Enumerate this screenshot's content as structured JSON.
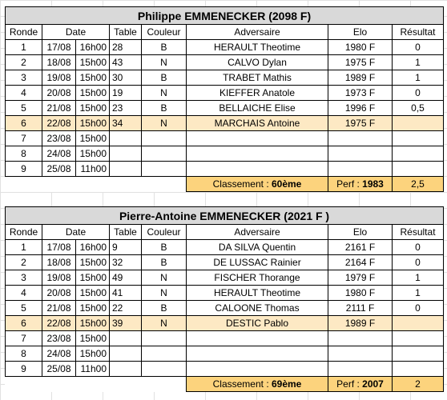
{
  "headers": [
    "Ronde",
    "Date",
    "Table",
    "Couleur",
    "Adversaire",
    "Elo",
    "Résultat"
  ],
  "players": [
    {
      "title": "Philippe EMMENECKER (2098 F)",
      "rows": [
        {
          "ronde": "1",
          "date": "17/08",
          "time": "16h00",
          "table": "28",
          "couleur": "B",
          "adversaire": "HERAULT Theotime",
          "elo": "1980 F",
          "resultat": "0"
        },
        {
          "ronde": "2",
          "date": "18/08",
          "time": "15h00",
          "table": "43",
          "couleur": "N",
          "adversaire": "CALVO Dylan",
          "elo": "1975 F",
          "resultat": "1"
        },
        {
          "ronde": "3",
          "date": "19/08",
          "time": "15h00",
          "table": "30",
          "couleur": "B",
          "adversaire": "TRABET Mathis",
          "elo": "1989 F",
          "resultat": "1"
        },
        {
          "ronde": "4",
          "date": "20/08",
          "time": "15h00",
          "table": "19",
          "couleur": "N",
          "adversaire": "KIEFFER Anatole",
          "elo": "1973 F",
          "resultat": "0"
        },
        {
          "ronde": "5",
          "date": "21/08",
          "time": "15h00",
          "table": "23",
          "couleur": "B",
          "adversaire": "BELLAICHE Elise",
          "elo": "1996 F",
          "resultat": "0,5"
        },
        {
          "ronde": "6",
          "date": "22/08",
          "time": "15h00",
          "table": "34",
          "couleur": "N",
          "adversaire": "MARCHAIS Antoine",
          "elo": "1975 F",
          "resultat": ""
        },
        {
          "ronde": "7",
          "date": "23/08",
          "time": "15h00",
          "table": "",
          "couleur": "",
          "adversaire": "",
          "elo": "",
          "resultat": ""
        },
        {
          "ronde": "8",
          "date": "24/08",
          "time": "15h00",
          "table": "",
          "couleur": "",
          "adversaire": "",
          "elo": "",
          "resultat": ""
        },
        {
          "ronde": "9",
          "date": "25/08",
          "time": "11h00",
          "table": "",
          "couleur": "",
          "adversaire": "",
          "elo": "",
          "resultat": ""
        }
      ],
      "classement_label": "Classement : ",
      "classement_value": "60ème",
      "perf_label": "Perf : ",
      "perf_value": "1983",
      "score": "2,5"
    },
    {
      "title": "Pierre-Antoine EMMENECKER (2021 F )",
      "rows": [
        {
          "ronde": "1",
          "date": "17/08",
          "time": "16h00",
          "table": "9",
          "couleur": "B",
          "adversaire": "DA SILVA Quentin",
          "elo": "2161 F",
          "resultat": "0"
        },
        {
          "ronde": "2",
          "date": "18/08",
          "time": "15h00",
          "table": "32",
          "couleur": "B",
          "adversaire": "DE LUSSAC Rainier",
          "elo": "2164 F",
          "resultat": "0"
        },
        {
          "ronde": "3",
          "date": "19/08",
          "time": "15h00",
          "table": "49",
          "couleur": "N",
          "adversaire": "FISCHER Thorange",
          "elo": "1979 F",
          "resultat": "1"
        },
        {
          "ronde": "4",
          "date": "20/08",
          "time": "15h00",
          "table": "41",
          "couleur": "N",
          "adversaire": "HERAULT Theotime",
          "elo": "1980 F",
          "resultat": "1"
        },
        {
          "ronde": "5",
          "date": "21/08",
          "time": "15h00",
          "table": "22",
          "couleur": "B",
          "adversaire": "CALOONE Thomas",
          "elo": "2111 F",
          "resultat": "0"
        },
        {
          "ronde": "6",
          "date": "22/08",
          "time": "15h00",
          "table": "39",
          "couleur": "N",
          "adversaire": "DESTIC Pablo",
          "elo": "1989 F",
          "resultat": ""
        },
        {
          "ronde": "7",
          "date": "23/08",
          "time": "15h00",
          "table": "",
          "couleur": "",
          "adversaire": "",
          "elo": "",
          "resultat": ""
        },
        {
          "ronde": "8",
          "date": "24/08",
          "time": "15h00",
          "table": "",
          "couleur": "",
          "adversaire": "",
          "elo": "",
          "resultat": ""
        },
        {
          "ronde": "9",
          "date": "25/08",
          "time": "11h00",
          "table": "",
          "couleur": "",
          "adversaire": "",
          "elo": "",
          "resultat": ""
        }
      ],
      "classement_label": "Classement : ",
      "classement_value": "69ème",
      "perf_label": "Perf : ",
      "perf_value": "2007",
      "score": "2"
    }
  ],
  "colors": {
    "title_bg": "#d9d9d9",
    "current_round_bg": "#fde9c4",
    "summary_bg": "#fcd37d",
    "gridline": "#e1e1e1"
  }
}
